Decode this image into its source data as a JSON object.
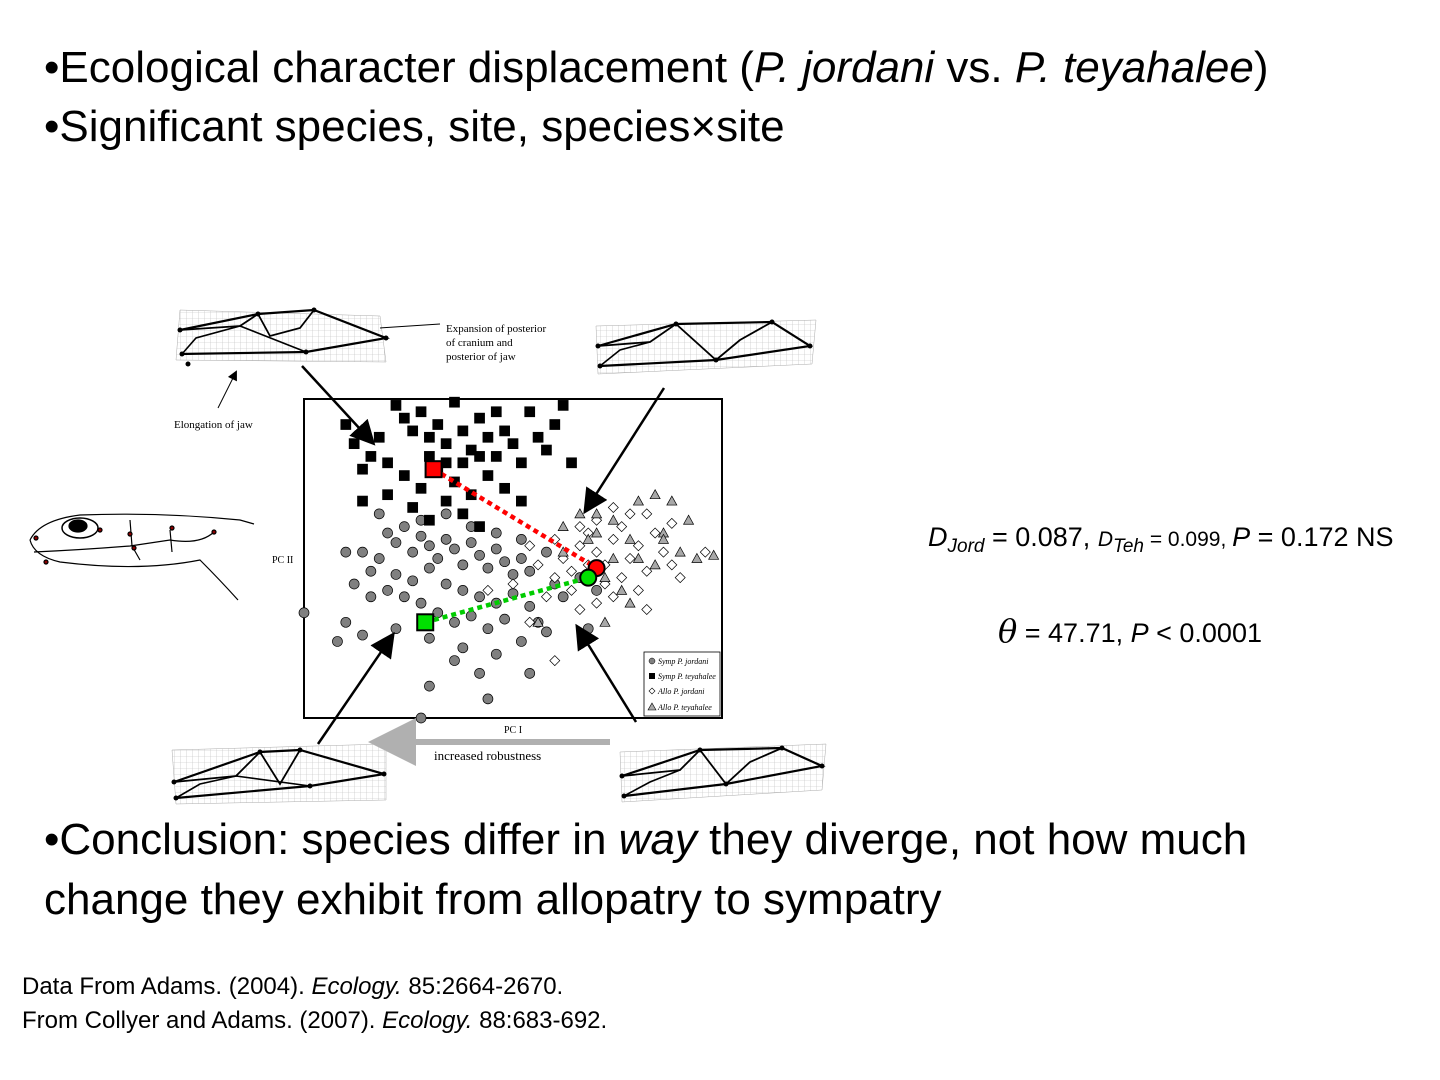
{
  "bullets": {
    "b1": {
      "bullet": "•",
      "pre": "Ecological character displacement (",
      "sp1": "P. jordani",
      "mid": " vs. ",
      "sp2": "P. teyahalee",
      "post": ")"
    },
    "b2": {
      "bullet": "•",
      "text": "Significant species, site, species×site"
    },
    "b3": {
      "bullet": "•",
      "pre": "Conclusion: species differ in ",
      "em": "way",
      "post": " they diverge, not how much change they exhibit from allopatry to sympatry"
    }
  },
  "stats": {
    "d_jord_sym": "D",
    "d_jord_sub": "Jord",
    "d_jord_val": " = 0.087, ",
    "d_teh_sym": "D",
    "d_teh_sub": "Teh",
    "d_teh_val": " = 0.099, ",
    "p1_sym": "P",
    "p1_val": " = 0.172 NS",
    "theta_sym": "θ",
    "theta_val": " = 47.71, ",
    "p2_sym": "P",
    "p2_val": " < 0.0001"
  },
  "citations": {
    "c1": {
      "pre": "Data From Adams. (2004). ",
      "journal": "Ecology.",
      "post": " 85:2664-2670."
    },
    "c2": {
      "pre": "From Collyer and Adams. (2007). ",
      "journal": "Ecology.",
      "post": " 88:683-692."
    }
  },
  "figure_labels": {
    "cranium_note_1": "Expansion of posterior",
    "cranium_note_2": "of cranium and",
    "cranium_note_3": "posterior of jaw",
    "jaw_note": "Elongation of jaw",
    "robust_note": "increased robustness"
  },
  "colors": {
    "symp_jordani": "#808080",
    "symp_teyahalee": "#000000",
    "allo_jordani": "#ffffff",
    "allo_teyahalee": "#a8a8a8",
    "mean_symp_teyahalee": "#ff0000",
    "mean_symp_jordani": "#00e000",
    "red_path": "#ff0000",
    "green_path": "#00cc00",
    "robust_arrow": "#b0b0b0"
  },
  "chart_data": {
    "type": "scatter",
    "xlabel": "PC I",
    "ylabel": "PC II",
    "xlim": [
      0,
      100
    ],
    "ylim": [
      0,
      100
    ],
    "grid": false,
    "legend_position": "bottom-right",
    "series": [
      {
        "name": "Symp P. jordani",
        "marker": "circle",
        "color": "#808080",
        "points": [
          [
            20,
            58
          ],
          [
            22,
            55
          ],
          [
            24,
            60
          ],
          [
            26,
            52
          ],
          [
            28,
            57
          ],
          [
            30,
            54
          ],
          [
            32,
            50
          ],
          [
            34,
            56
          ],
          [
            36,
            53
          ],
          [
            38,
            48
          ],
          [
            40,
            55
          ],
          [
            42,
            51
          ],
          [
            44,
            47
          ],
          [
            46,
            53
          ],
          [
            48,
            49
          ],
          [
            50,
            45
          ],
          [
            52,
            50
          ],
          [
            54,
            46
          ],
          [
            18,
            50
          ],
          [
            16,
            46
          ],
          [
            14,
            52
          ],
          [
            22,
            45
          ],
          [
            26,
            43
          ],
          [
            30,
            47
          ],
          [
            34,
            42
          ],
          [
            38,
            40
          ],
          [
            42,
            38
          ],
          [
            46,
            36
          ],
          [
            50,
            39
          ],
          [
            54,
            35
          ],
          [
            56,
            30
          ],
          [
            48,
            31
          ],
          [
            44,
            28
          ],
          [
            40,
            32
          ],
          [
            36,
            30
          ],
          [
            32,
            33
          ],
          [
            28,
            36
          ],
          [
            24,
            38
          ],
          [
            20,
            40
          ],
          [
            16,
            38
          ],
          [
            12,
            42
          ],
          [
            10,
            30
          ],
          [
            8,
            24
          ],
          [
            14,
            26
          ],
          [
            22,
            28
          ],
          [
            30,
            25
          ],
          [
            38,
            22
          ],
          [
            46,
            20
          ],
          [
            52,
            24
          ],
          [
            58,
            27
          ],
          [
            62,
            38
          ],
          [
            60,
            42
          ],
          [
            66,
            44
          ],
          [
            70,
            40
          ],
          [
            28,
            62
          ],
          [
            34,
            64
          ],
          [
            40,
            60
          ],
          [
            46,
            58
          ],
          [
            52,
            56
          ],
          [
            58,
            52
          ],
          [
            36,
            18
          ],
          [
            42,
            14
          ],
          [
            54,
            14
          ],
          [
            30,
            10
          ],
          [
            44,
            6
          ],
          [
            28,
            0
          ],
          [
            0,
            33
          ],
          [
            68,
            28
          ],
          [
            10,
            52
          ],
          [
            18,
            64
          ]
        ]
      },
      {
        "name": "Symp P. teyahalee",
        "marker": "square",
        "color": "#000000",
        "points": [
          [
            22,
            98
          ],
          [
            24,
            94
          ],
          [
            26,
            90
          ],
          [
            28,
            96
          ],
          [
            30,
            88
          ],
          [
            32,
            92
          ],
          [
            34,
            86
          ],
          [
            36,
            99
          ],
          [
            38,
            90
          ],
          [
            40,
            84
          ],
          [
            42,
            94
          ],
          [
            44,
            88
          ],
          [
            46,
            82
          ],
          [
            48,
            90
          ],
          [
            50,
            86
          ],
          [
            52,
            80
          ],
          [
            54,
            96
          ],
          [
            56,
            88
          ],
          [
            58,
            84
          ],
          [
            60,
            92
          ],
          [
            62,
            98
          ],
          [
            64,
            80
          ],
          [
            18,
            88
          ],
          [
            16,
            82
          ],
          [
            14,
            78
          ],
          [
            20,
            80
          ],
          [
            24,
            76
          ],
          [
            28,
            72
          ],
          [
            32,
            78
          ],
          [
            36,
            74
          ],
          [
            40,
            70
          ],
          [
            44,
            76
          ],
          [
            48,
            72
          ],
          [
            52,
            68
          ],
          [
            26,
            66
          ],
          [
            30,
            62
          ],
          [
            34,
            68
          ],
          [
            38,
            64
          ],
          [
            42,
            60
          ],
          [
            20,
            70
          ],
          [
            14,
            68
          ],
          [
            10,
            92
          ],
          [
            12,
            86
          ],
          [
            46,
            96
          ],
          [
            34,
            80
          ],
          [
            30,
            82
          ],
          [
            38,
            80
          ],
          [
            42,
            82
          ]
        ]
      },
      {
        "name": "Allo P. jordani",
        "marker": "diamond",
        "color": "#ffffff",
        "points": [
          [
            60,
            56
          ],
          [
            62,
            50
          ],
          [
            64,
            46
          ],
          [
            66,
            54
          ],
          [
            68,
            58
          ],
          [
            70,
            52
          ],
          [
            72,
            48
          ],
          [
            74,
            56
          ],
          [
            76,
            60
          ],
          [
            78,
            50
          ],
          [
            80,
            54
          ],
          [
            82,
            46
          ],
          [
            84,
            58
          ],
          [
            86,
            52
          ],
          [
            72,
            42
          ],
          [
            74,
            38
          ],
          [
            70,
            36
          ],
          [
            76,
            44
          ],
          [
            80,
            40
          ],
          [
            66,
            60
          ],
          [
            64,
            40
          ],
          [
            60,
            44
          ],
          [
            58,
            38
          ],
          [
            56,
            48
          ],
          [
            54,
            54
          ],
          [
            88,
            48
          ],
          [
            82,
            64
          ],
          [
            78,
            64
          ],
          [
            74,
            66
          ],
          [
            88,
            61
          ],
          [
            96,
            52
          ],
          [
            66,
            34
          ],
          [
            60,
            18
          ],
          [
            54,
            30
          ],
          [
            50,
            42
          ],
          [
            44,
            40
          ],
          [
            68,
            48
          ],
          [
            90,
            44
          ],
          [
            82,
            34
          ],
          [
            70,
            62
          ]
        ]
      },
      {
        "name": "Allo P. teyahalee",
        "marker": "triangle",
        "color": "#a8a8a8",
        "points": [
          [
            62,
            60
          ],
          [
            66,
            64
          ],
          [
            70,
            58
          ],
          [
            74,
            62
          ],
          [
            78,
            56
          ],
          [
            80,
            50
          ],
          [
            84,
            48
          ],
          [
            86,
            58
          ],
          [
            90,
            52
          ],
          [
            94,
            50
          ],
          [
            98,
            51
          ],
          [
            80,
            68
          ],
          [
            84,
            70
          ],
          [
            88,
            68
          ],
          [
            72,
            44
          ],
          [
            76,
            40
          ],
          [
            78,
            36
          ],
          [
            72,
            30
          ],
          [
            56,
            30
          ],
          [
            86,
            56
          ],
          [
            68,
            56
          ],
          [
            74,
            50
          ],
          [
            62,
            52
          ],
          [
            70,
            64
          ],
          [
            92,
            62
          ]
        ]
      },
      {
        "name": "Mean Symp P. teyahalee",
        "marker": "square",
        "color": "#ff0000",
        "points": [
          [
            31,
            78
          ]
        ]
      },
      {
        "name": "Mean Symp P. jordani",
        "marker": "square",
        "color": "#00e000",
        "points": [
          [
            29,
            30
          ]
        ]
      },
      {
        "name": "Mean Allo P. teyahalee",
        "marker": "circle",
        "color": "#ff0000",
        "points": [
          [
            70,
            47
          ]
        ]
      },
      {
        "name": "Mean Allo P. jordani",
        "marker": "circle",
        "color": "#00e000",
        "points": [
          [
            68,
            44
          ]
        ]
      }
    ],
    "trajectories": [
      {
        "species": "P. teyahalee",
        "from": [
          31,
          78
        ],
        "to": [
          70,
          47
        ],
        "color": "#ff0000",
        "style": "dotted"
      },
      {
        "species": "P. jordani",
        "from": [
          29,
          30
        ],
        "to": [
          68,
          44
        ],
        "color": "#00cc00",
        "style": "dotted"
      }
    ]
  }
}
